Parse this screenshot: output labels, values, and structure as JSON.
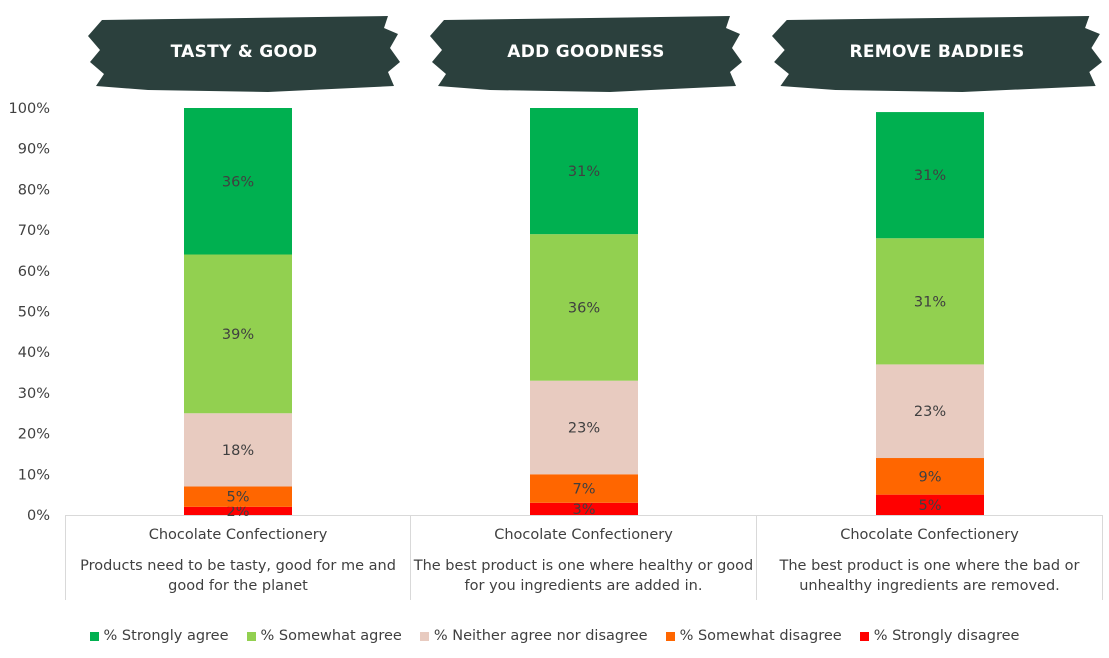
{
  "banners": [
    "TASTY & GOOD",
    "ADD GOODNESS",
    "REMOVE BADDIES"
  ],
  "banner_color": "#2b403d",
  "chart_data": {
    "type": "stacked-bar",
    "categories": [
      {
        "label": "Chocolate Confectionery",
        "statement": "Products need to be tasty, good for me and good for the planet"
      },
      {
        "label": "Chocolate Confectionery",
        "statement": "The best product is one where healthy or good for you ingredients are added in."
      },
      {
        "label": "Chocolate Confectionery",
        "statement": "The best product is one where the bad or unhealthy ingredients are removed."
      }
    ],
    "series": [
      {
        "name": "% Strongly disagree",
        "color": "#ff0000",
        "values": [
          2,
          3,
          5
        ]
      },
      {
        "name": "% Somewhat disagree",
        "color": "#ff6600",
        "values": [
          5,
          7,
          9
        ]
      },
      {
        "name": "% Neither agree nor disagree",
        "color": "#e8cbc0",
        "values": [
          18,
          23,
          23
        ]
      },
      {
        "name": "% Somewhat agree",
        "color": "#92d050",
        "values": [
          39,
          36,
          31
        ]
      },
      {
        "name": "% Strongly agree",
        "color": "#00b050",
        "values": [
          36,
          31,
          31
        ]
      }
    ],
    "ylim": [
      0,
      100
    ],
    "yticks": [
      "0%",
      "10%",
      "20%",
      "30%",
      "40%",
      "50%",
      "60%",
      "70%",
      "80%",
      "90%",
      "100%"
    ],
    "legend_position": "bottom",
    "legend_order": [
      4,
      3,
      2,
      1,
      0
    ],
    "grid": false
  }
}
